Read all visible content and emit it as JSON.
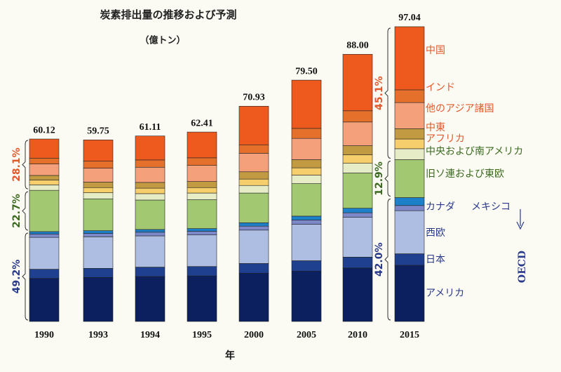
{
  "chart_data": {
    "type": "stacked_bar",
    "title": "炭素排出量の推移および予測",
    "subtitle": "（億トン）",
    "x_label": "年",
    "categories": [
      "1990",
      "1993",
      "1994",
      "1995",
      "2000",
      "2005",
      "2010",
      "2015"
    ],
    "totals": {
      "values": [
        60.12,
        59.75,
        61.11,
        62.41,
        70.93,
        79.5,
        88.0,
        97.04
      ],
      "value_labels": [
        "60.12",
        "59.75",
        "61.11",
        "62.41",
        "70.93",
        "79.50",
        "88.00",
        "97.04"
      ]
    },
    "series": [
      {
        "name": "アメリカ",
        "color": "#0c1f5e",
        "values": [
          14.2,
          14.5,
          14.8,
          15.0,
          15.9,
          16.6,
          17.6,
          18.5
        ]
      },
      {
        "name": "日本",
        "color": "#1f3f8f",
        "values": [
          3.0,
          3.0,
          3.1,
          3.1,
          3.2,
          3.4,
          3.6,
          3.8
        ]
      },
      {
        "name": "西欧",
        "color": "#aebde2",
        "values": [
          10.5,
          10.4,
          10.3,
          10.4,
          11.0,
          12.0,
          13.1,
          14.2
        ]
      },
      {
        "name": "カナダ",
        "color": "#7c88c8",
        "values": [
          1.1,
          1.1,
          1.2,
          1.2,
          1.3,
          1.4,
          1.5,
          1.7
        ]
      },
      {
        "name": "メキシコ",
        "color": "#1e80c8",
        "values": [
          0.8,
          0.9,
          0.9,
          0.9,
          1.1,
          1.3,
          1.5,
          2.6
        ]
      },
      {
        "name": "旧ソ連および東欧",
        "color": "#a2c872",
        "values": [
          13.6,
          10.5,
          9.7,
          9.5,
          9.8,
          10.7,
          11.6,
          12.5
        ]
      },
      {
        "name": "中央および南アメリカ",
        "color": "#e6edc6",
        "values": [
          1.8,
          2.0,
          2.1,
          2.2,
          2.5,
          2.8,
          3.2,
          3.6
        ]
      },
      {
        "name": "アフリカ",
        "color": "#f6cf6c",
        "values": [
          1.6,
          1.7,
          1.8,
          1.8,
          2.1,
          2.4,
          2.8,
          3.2
        ]
      },
      {
        "name": "中東",
        "color": "#c29a42",
        "values": [
          1.5,
          1.8,
          1.9,
          2.0,
          2.4,
          2.7,
          3.0,
          3.4
        ]
      },
      {
        "name": "他のアジア諸国",
        "color": "#f4a07a",
        "values": [
          3.8,
          4.6,
          5.0,
          5.3,
          6.1,
          7.0,
          7.8,
          8.6
        ]
      },
      {
        "name": "インド",
        "color": "#e4702c",
        "values": [
          1.9,
          2.3,
          2.4,
          2.5,
          2.8,
          3.3,
          3.7,
          4.2
        ]
      },
      {
        "name": "中国",
        "color": "#ee5a1e",
        "values": [
          6.3,
          7.0,
          7.9,
          8.5,
          12.7,
          15.9,
          18.6,
          20.8
        ]
      }
    ],
    "shares": [
      {
        "category": "1990",
        "values": [
          49.2,
          22.7,
          28.1
        ],
        "value_labels": [
          "49.2%",
          "22.7%",
          "28.1%"
        ]
      },
      {
        "category": "2015",
        "values": [
          42.0,
          12.9,
          45.1
        ],
        "value_labels": [
          "42.0%",
          "12.9%",
          "45.1%"
        ]
      }
    ],
    "group_label": "OECD"
  }
}
